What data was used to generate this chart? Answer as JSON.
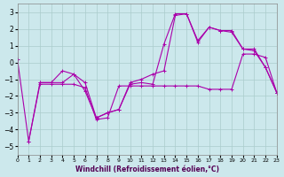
{
  "xlabel": "Windchill (Refroidissement éolien,°C)",
  "xlim": [
    0,
    23
  ],
  "ylim": [
    -5.5,
    3.5
  ],
  "yticks": [
    -5,
    -4,
    -3,
    -2,
    -1,
    0,
    1,
    2,
    3
  ],
  "xticks": [
    0,
    1,
    2,
    3,
    4,
    5,
    6,
    7,
    8,
    9,
    10,
    11,
    12,
    13,
    14,
    15,
    16,
    17,
    18,
    19,
    20,
    21,
    22,
    23
  ],
  "background_color": "#cce8ec",
  "grid_color": "#aacccc",
  "line_color": "#aa00aa",
  "line1_x": [
    0,
    1,
    2,
    3,
    4,
    5,
    6,
    7,
    8,
    9,
    10,
    11,
    12,
    13,
    14,
    15,
    16,
    17,
    18,
    19,
    20,
    21,
    22,
    23
  ],
  "line1_y": [
    0.2,
    -4.7,
    -1.2,
    -1.2,
    -0.5,
    -0.7,
    -1.7,
    -3.3,
    -3.0,
    -2.8,
    -1.3,
    -1.2,
    -1.3,
    1.1,
    2.9,
    2.9,
    1.3,
    2.1,
    1.9,
    1.9,
    0.8,
    0.8,
    -0.3,
    -1.8
  ],
  "line2_x": [
    2,
    3,
    4,
    5,
    6,
    7,
    8,
    9,
    10,
    11,
    12,
    13,
    14,
    15,
    16,
    17,
    18,
    19,
    20,
    21,
    22,
    23
  ],
  "line2_y": [
    -1.2,
    -1.2,
    -1.2,
    -0.7,
    -1.2,
    -3.3,
    -3.0,
    -2.8,
    -1.2,
    -1.0,
    -0.7,
    -0.5,
    2.8,
    2.9,
    1.2,
    2.1,
    1.9,
    1.8,
    0.8,
    0.7,
    -0.3,
    -1.8
  ],
  "line3_x": [
    1,
    2,
    3,
    4,
    5,
    6,
    7,
    8,
    9,
    10,
    11,
    12,
    13,
    14,
    15,
    16,
    17,
    18,
    19,
    20,
    21,
    22,
    23
  ],
  "line3_y": [
    -4.7,
    -1.3,
    -1.3,
    -1.3,
    -1.3,
    -1.5,
    -3.4,
    -3.3,
    -1.4,
    -1.4,
    -1.4,
    -1.4,
    -1.4,
    -1.4,
    -1.4,
    -1.4,
    -1.6,
    -1.6,
    -1.6,
    0.5,
    0.5,
    0.3,
    -1.8
  ]
}
